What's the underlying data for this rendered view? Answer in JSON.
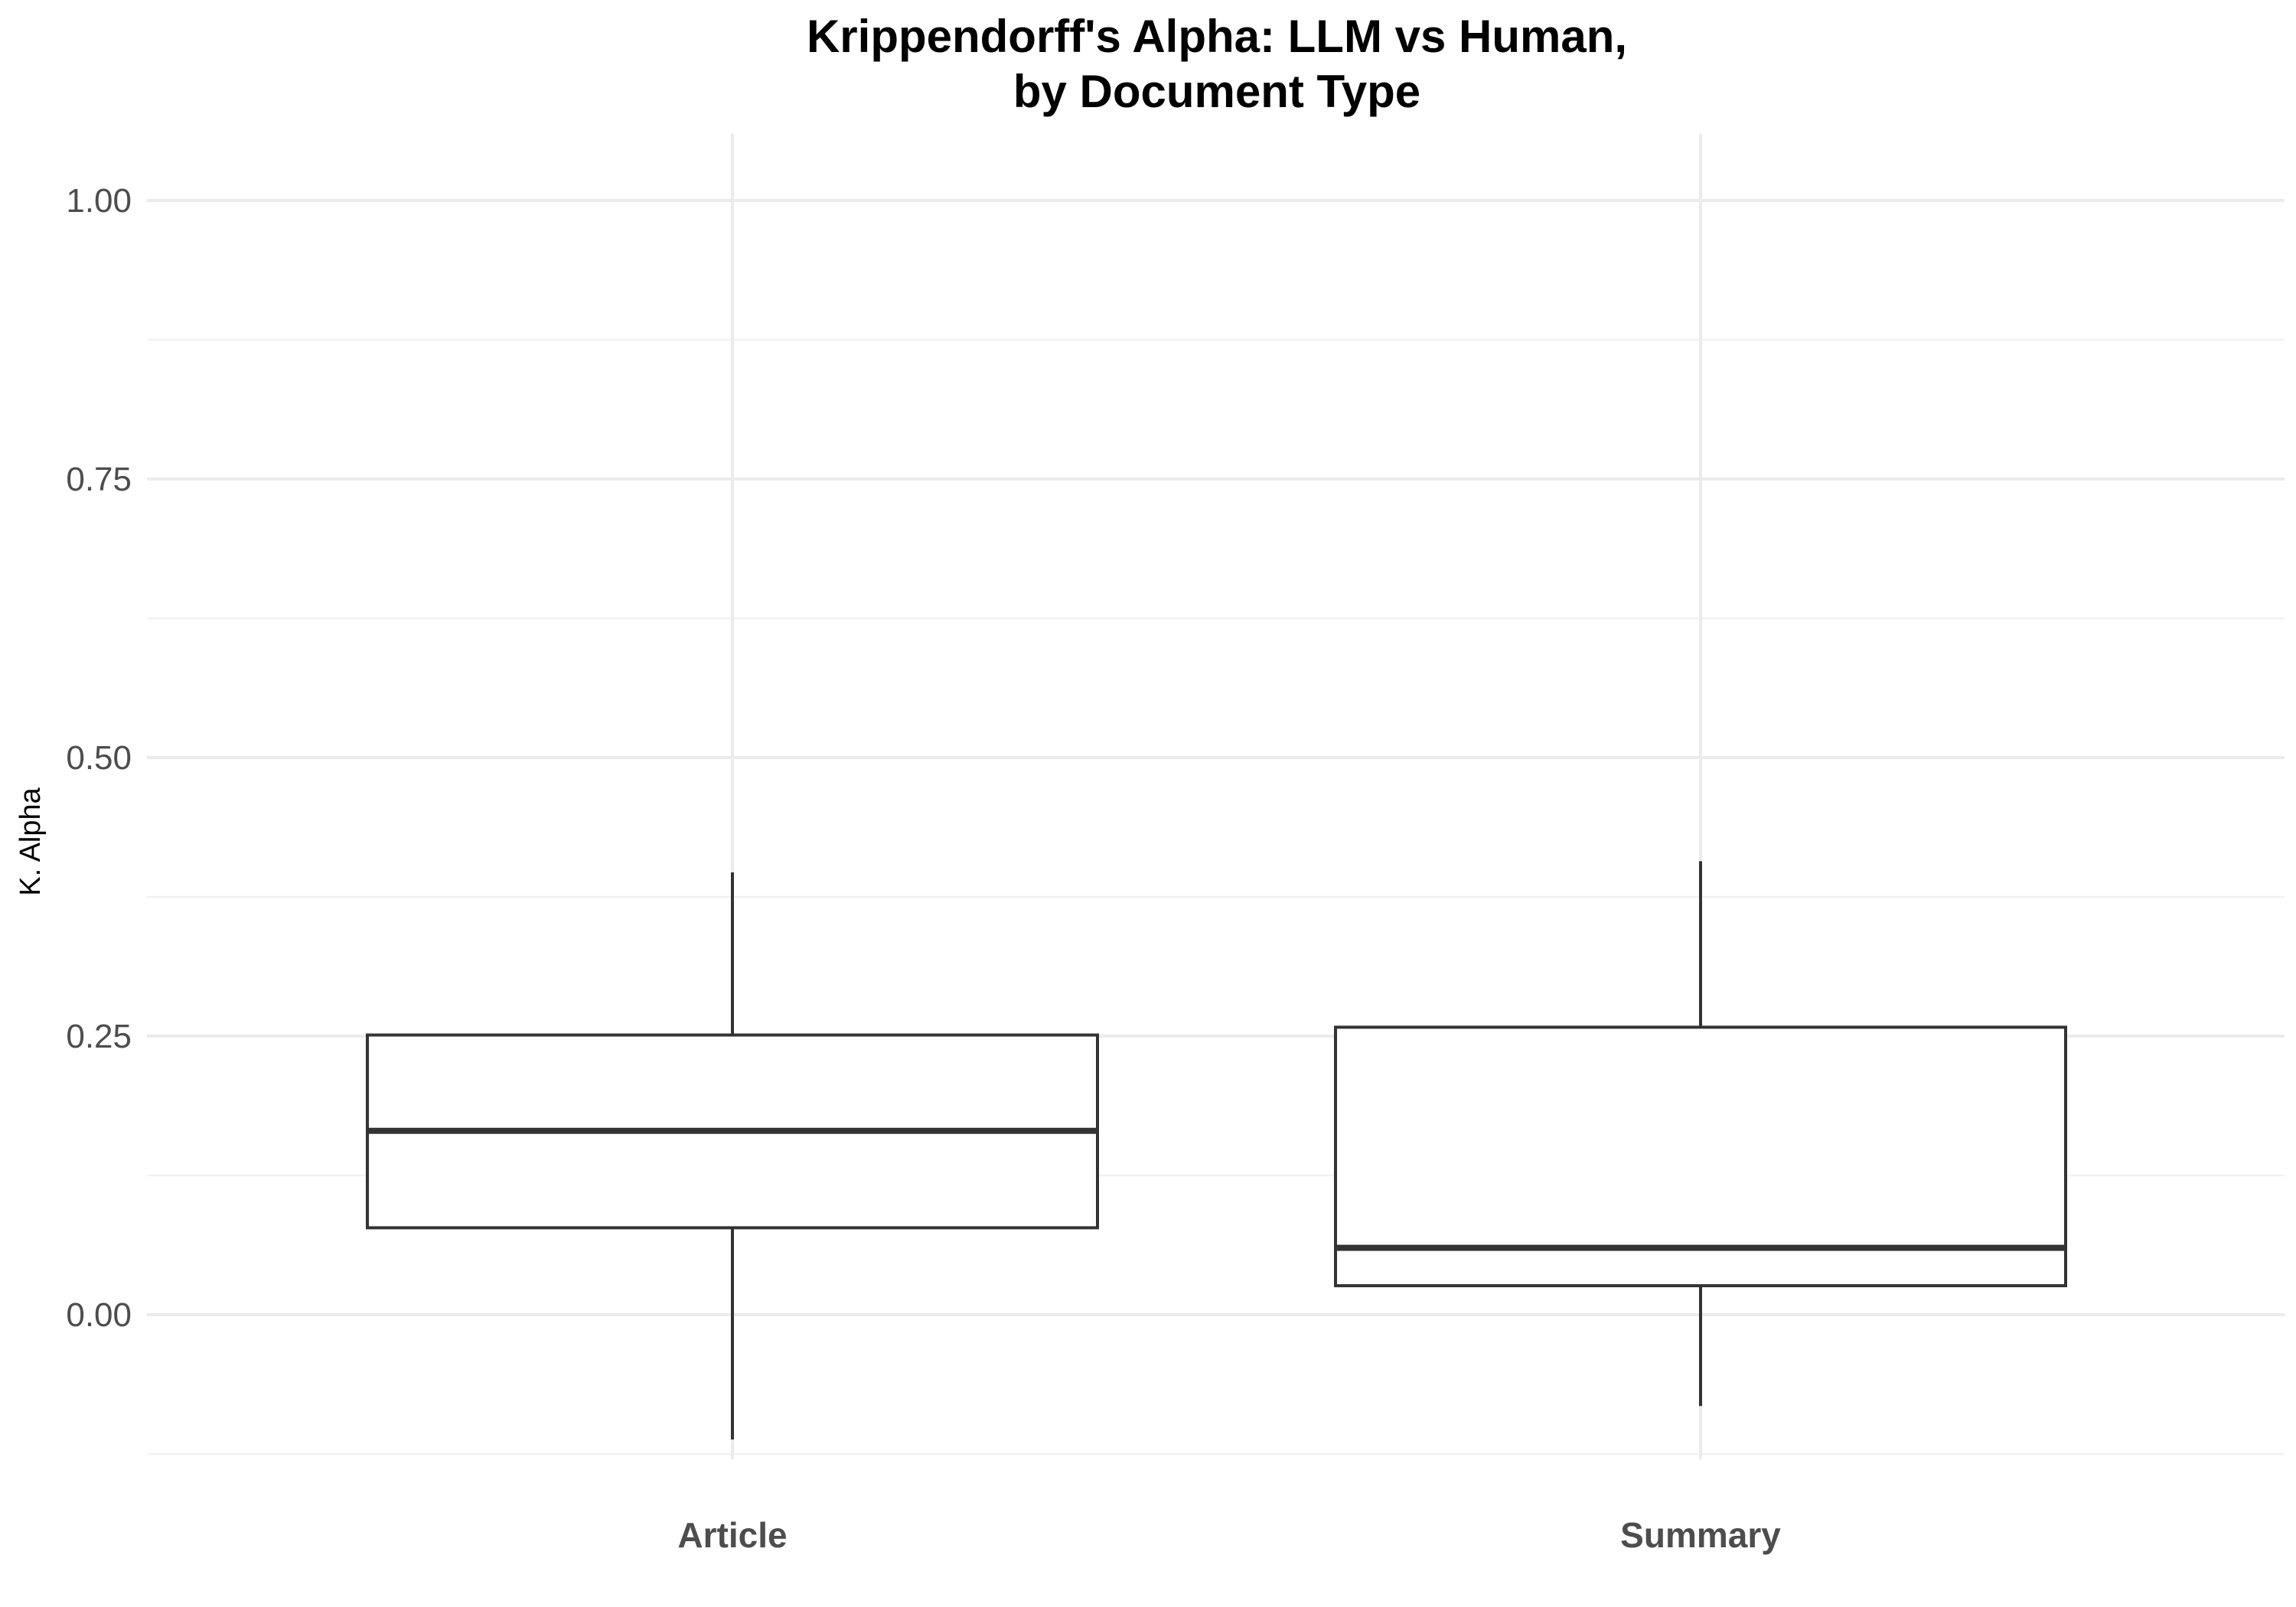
{
  "chart_data": {
    "type": "boxplot",
    "title": [
      "Krippendorff's Alpha: LLM vs Human,",
      "by Document Type"
    ],
    "xlabel": "",
    "ylabel": "K. Alpha",
    "ylim": [
      -0.13,
      1.06
    ],
    "yticks": [
      0.0,
      0.25,
      0.5,
      0.75,
      1.0
    ],
    "ytick_labels": [
      "0.00",
      "0.25",
      "0.50",
      "0.75",
      "1.00"
    ],
    "grid": true,
    "categories": [
      "Article",
      "Summary"
    ],
    "boxes": [
      {
        "category": "Article",
        "whisker_low": -0.112,
        "q1": 0.078,
        "median": 0.165,
        "q3": 0.251,
        "whisker_high": 0.397
      },
      {
        "category": "Summary",
        "whisker_low": -0.082,
        "q1": 0.026,
        "median": 0.06,
        "q3": 0.258,
        "whisker_high": 0.407
      }
    ],
    "colors": {
      "box_line": "#333333",
      "box_fill": "#ffffff",
      "grid": "#ebebeb"
    }
  }
}
